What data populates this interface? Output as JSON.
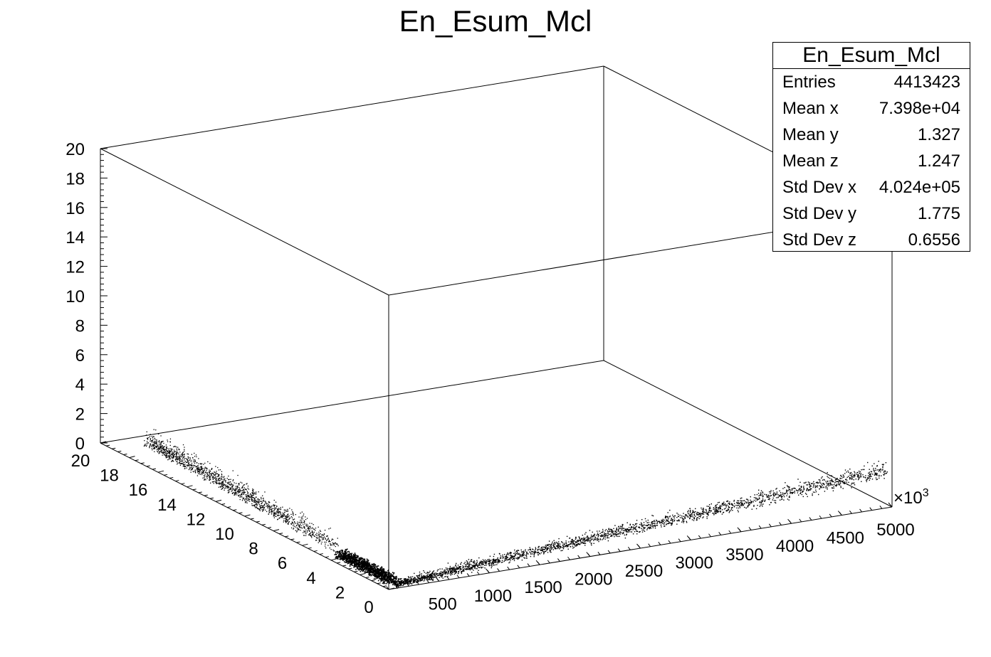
{
  "chart_data": {
    "type": "scatter",
    "dimensions": 3,
    "title": "En_Esum_Mcl",
    "x_axis": {
      "ticks": [
        "500",
        "1000",
        "1500",
        "2000",
        "2500",
        "3000",
        "3500",
        "4000",
        "4500",
        "5000"
      ],
      "range": [
        0,
        5000
      ],
      "multiplier_label": "×10",
      "multiplier_exp": "3"
    },
    "y_axis": {
      "ticks": [
        "0",
        "2",
        "4",
        "6",
        "8",
        "10",
        "12",
        "14",
        "16",
        "18",
        "20"
      ],
      "range": [
        0,
        20
      ]
    },
    "z_axis": {
      "ticks": [
        "0",
        "2",
        "4",
        "6",
        "8",
        "10",
        "12",
        "14",
        "16",
        "18",
        "20"
      ],
      "range": [
        0,
        20
      ]
    },
    "grid": false,
    "legend": "none",
    "point_color": "#000000",
    "clusters": [
      {
        "x_range": [
          0,
          5000
        ],
        "y_range": [
          0,
          1.5
        ],
        "z_range": [
          0,
          3
        ],
        "shape": "band rising with x"
      },
      {
        "x_range": [
          0,
          150
        ],
        "y_range": [
          0,
          4
        ],
        "z_range": [
          0,
          1
        ],
        "shape": "dense block near origin"
      },
      {
        "x_range": [
          0,
          120
        ],
        "y_range": [
          4,
          18
        ],
        "z_range": [
          0,
          3
        ],
        "shape": "diffuse cloud along y"
      }
    ]
  },
  "stats_box": {
    "title": "En_Esum_Mcl",
    "rows": [
      {
        "label": "Entries",
        "value": "4413423"
      },
      {
        "label": "Mean x",
        "value": "7.398e+04"
      },
      {
        "label": "Mean y",
        "value": "1.327"
      },
      {
        "label": "Mean z",
        "value": "1.247"
      },
      {
        "label": "Std Dev x",
        "value": "4.024e+05"
      },
      {
        "label": "Std Dev y",
        "value": "1.775"
      },
      {
        "label": "Std Dev z",
        "value": "0.6556"
      }
    ]
  }
}
